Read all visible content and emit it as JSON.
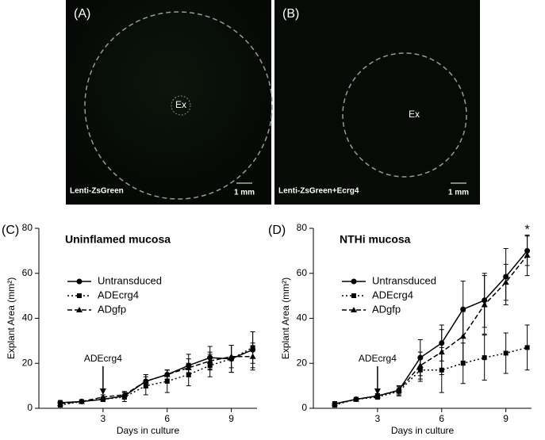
{
  "panels": [
    {
      "label": "(A)",
      "center": "Ex",
      "caption": "Lenti-ZsGreen",
      "scale": "1 mm"
    },
    {
      "label": "(B)",
      "center": "Ex",
      "caption": "Lenti-ZsGreen+Ecrg4",
      "scale": "1 mm"
    }
  ],
  "chart_data": [
    {
      "type": "line",
      "panel": "(C)",
      "title": "Uninflamed mucosa",
      "xlabel": "Days in culture",
      "ylabel": "Explant Area  (mm²)",
      "x": [
        1,
        2,
        3,
        4,
        5,
        6,
        7,
        8,
        9,
        10
      ],
      "xlim": [
        0,
        10.2
      ],
      "xticks": [
        3,
        6,
        9
      ],
      "ylim": [
        0,
        80
      ],
      "yticks": [
        0,
        20,
        40,
        60,
        80
      ],
      "annotation": {
        "text": "ADEcrg4",
        "x": 3
      },
      "series": [
        {
          "name": "Untransduced",
          "color": "#000000",
          "marker": "circle",
          "linestyle": "solid",
          "values": [
            2.5,
            3,
            4,
            5.5,
            12,
            15,
            19,
            22.5,
            22,
            26
          ],
          "errors": [
            1,
            0.5,
            1,
            1.5,
            3,
            2,
            5,
            5,
            6,
            8
          ]
        },
        {
          "name": "ADEcrg4",
          "color": "#000000",
          "marker": "square",
          "linestyle": "dotted",
          "values": [
            1.5,
            3,
            4,
            5,
            10,
            12,
            15,
            19,
            22,
            27
          ],
          "errors": [
            1,
            0.5,
            1,
            2,
            4,
            5,
            5,
            5,
            6,
            7
          ]
        },
        {
          "name": "ADgfp",
          "color": "#000000",
          "marker": "triangle",
          "linestyle": "dashed",
          "values": [
            2,
            3,
            5,
            6,
            12,
            15,
            18,
            21,
            23,
            23
          ],
          "errors": [
            1,
            0.5,
            1,
            1.5,
            3,
            2,
            4,
            4,
            5,
            6
          ]
        }
      ]
    },
    {
      "type": "line",
      "panel": "(D)",
      "title": "NTHi mucosa",
      "xlabel": "Days in culture",
      "ylabel": "Explant Area  (mm²)",
      "x": [
        1,
        2,
        3,
        4,
        5,
        6,
        7,
        8,
        9,
        10
      ],
      "xlim": [
        0,
        10.2
      ],
      "xticks": [
        3,
        6,
        9
      ],
      "ylim": [
        0,
        80
      ],
      "yticks": [
        0,
        20,
        40,
        60,
        80
      ],
      "annotation": {
        "text": "ADEcrg4",
        "x": 3
      },
      "significance": {
        "text": "*",
        "x": 10
      },
      "series": [
        {
          "name": "Untransduced",
          "color": "#000000",
          "marker": "circle",
          "linestyle": "solid",
          "values": [
            2,
            4,
            5.5,
            8,
            22.5,
            29,
            44,
            48,
            58.5,
            70
          ],
          "errors": [
            1,
            0.5,
            1,
            2,
            8,
            8,
            12.5,
            12,
            12.5,
            6.5
          ]
        },
        {
          "name": "ADEcrg4",
          "color": "#000000",
          "marker": "square",
          "linestyle": "dotted",
          "values": [
            1.5,
            4,
            5,
            7.5,
            17,
            17,
            20,
            22.5,
            24.5,
            27
          ],
          "errors": [
            1,
            0.5,
            1,
            2,
            5,
            10,
            9,
            10,
            9,
            10
          ]
        },
        {
          "name": "ADgfp",
          "color": "#000000",
          "marker": "triangle",
          "linestyle": "dashed",
          "values": [
            2,
            4,
            5.5,
            8,
            19,
            25,
            32,
            46,
            56,
            68
          ],
          "errors": [
            1,
            0.5,
            1,
            2,
            6,
            10,
            11,
            13,
            8,
            9
          ]
        }
      ]
    }
  ]
}
